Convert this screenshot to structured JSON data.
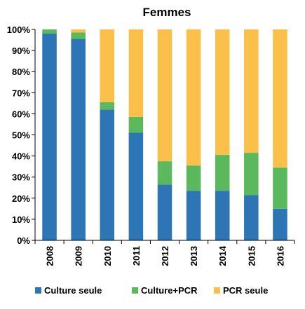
{
  "chart_data": {
    "type": "bar",
    "stacked": true,
    "percent": true,
    "title": "Femmes",
    "categories": [
      "2008",
      "2009",
      "2010",
      "2011",
      "2012",
      "2013",
      "2014",
      "2015",
      "2016"
    ],
    "series": [
      {
        "name": "Culture seule",
        "color": "#2e75b6",
        "values": [
          98,
          95.5,
          62,
          51,
          26.5,
          23.5,
          23.5,
          21.5,
          15
        ]
      },
      {
        "name": "Culture+PCR",
        "color": "#5cb85c",
        "values": [
          2,
          3,
          3.5,
          7.5,
          11,
          12,
          17,
          20,
          19.5
        ]
      },
      {
        "name": "PCR seule",
        "color": "#fbc04a",
        "values": [
          0,
          1.5,
          34.5,
          41.5,
          62.5,
          64.5,
          59.5,
          58.5,
          65.5
        ]
      }
    ],
    "ylim": [
      0,
      100
    ],
    "yticks": [
      0,
      10,
      20,
      30,
      40,
      50,
      60,
      70,
      80,
      90,
      100
    ],
    "ytick_labels": [
      "0%",
      "10%",
      "20%",
      "30%",
      "40%",
      "50%",
      "60%",
      "70%",
      "80%",
      "90%",
      "100%"
    ],
    "grid": false,
    "legend_position": "bottom"
  }
}
